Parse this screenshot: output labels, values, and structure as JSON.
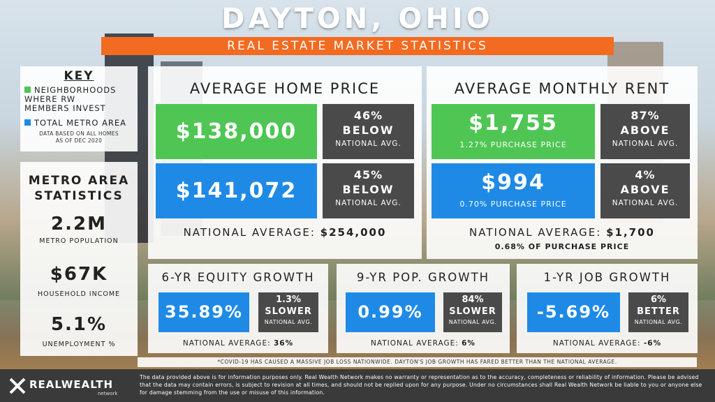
{
  "header": {
    "title": "DAYTON, OHIO",
    "subtitle": "REAL ESTATE MARKET STATISTICS"
  },
  "key": {
    "heading": "KEY",
    "green_label_1": "NEIGHBORHOODS",
    "green_label_2": "WHERE RW",
    "green_label_3": "MEMBERS INVEST",
    "blue_label": "TOTAL METRO AREA",
    "note_1": "DATA BASED ON ALL HOMES",
    "note_2": "AS OF DEC 2020",
    "green_color": "#4fc654",
    "blue_color": "#1f8ae6"
  },
  "metro": {
    "heading_1": "METRO AREA",
    "heading_2": "STATISTICS",
    "population_value": "2.2M",
    "population_label": "METRO POPULATION",
    "income_value": "$67K",
    "income_label": "HOUSEHOLD INCOME",
    "unemployment_value": "5.1%",
    "unemployment_label": "UNEMPLOYMENT %"
  },
  "home_price": {
    "title": "AVERAGE HOME PRICE",
    "green_value": "$138,000",
    "green_pct": "46%",
    "green_dir": "BELOW",
    "green_sub": "NATIONAL AVG.",
    "blue_value": "$141,072",
    "blue_pct": "45%",
    "blue_dir": "BELOW",
    "blue_sub": "NATIONAL AVG.",
    "national_label": "NATIONAL AVERAGE:",
    "national_value": "$254,000"
  },
  "rent": {
    "title": "AVERAGE MONTHLY RENT",
    "green_value": "$1,755",
    "green_note": "1.27% PURCHASE PRICE",
    "green_pct": "87%",
    "green_dir": "ABOVE",
    "green_sub": "NATIONAL AVG.",
    "blue_value": "$994",
    "blue_note": "0.70% PURCHASE PRICE",
    "blue_pct": "4%",
    "blue_dir": "ABOVE",
    "blue_sub": "NATIONAL AVG.",
    "national_label": "NATIONAL AVERAGE:",
    "national_value": "$1,700",
    "national_note": "0.68% OF PURCHASE PRICE"
  },
  "equity": {
    "title": "6-YR EQUITY GROWTH",
    "value": "35.89%",
    "cmp_pct": "1.3%",
    "cmp_dir": "SLOWER",
    "cmp_sub": "NATIONAL AVG.",
    "national_label": "NATIONAL AVERAGE:",
    "national_value": "36%"
  },
  "population": {
    "title": "9-YR POP. GROWTH",
    "value": "0.99%",
    "cmp_pct": "84%",
    "cmp_dir": "SLOWER",
    "cmp_sub": "NATIONAL AVG.",
    "national_label": "NATIONAL AVERAGE:",
    "national_value": "6%"
  },
  "jobs": {
    "title": "1-YR JOB GROWTH",
    "value": "-5.69%",
    "cmp_pct": "6%",
    "cmp_dir": "BETTER",
    "cmp_sub": "NATIONAL AVG.",
    "national_label": "NATIONAL AVERAGE:",
    "national_value": "-6%"
  },
  "covid_note": "*COVID-19 HAS CAUSED A MASSIVE JOB LOSS NATIONWIDE. DAYTON'S JOB GROWTH HAS FARED BETTER THAN THE NATIONAL AVERAGE.",
  "footer": {
    "logo": "REALWEALTH",
    "logo_sub": "network",
    "disclaimer": "The data provided above is for information purposes only. Real Wealth Network makes no warranty or representation as to the accuracy, completeness or reliability of information. Please be advised that the data may contain errors, is subject to revision at all times, and should not be replied upon for any purpose. Under no circumstances shall Real Wealth Network be liable to you or anyone else for damage stemming from the use or misuse of this information."
  }
}
